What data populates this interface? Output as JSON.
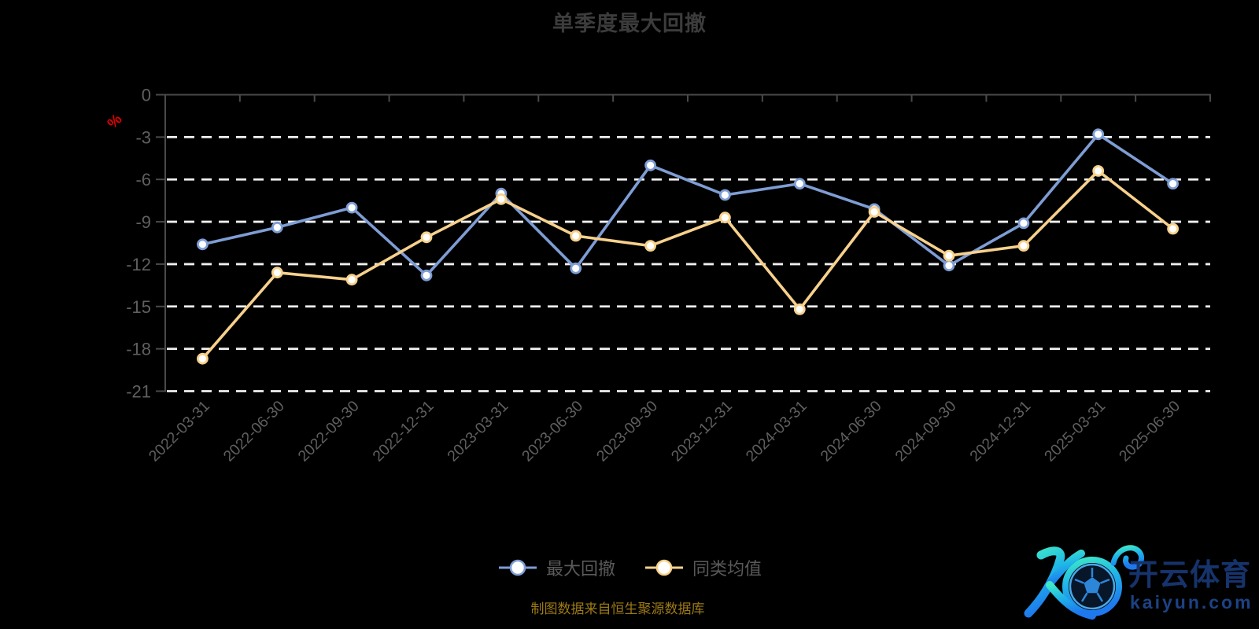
{
  "title": {
    "text": "单季度最大回撤"
  },
  "source_note": "制图数据来自恒生聚源数据库",
  "watermark": {
    "cn": "开云体育",
    "url": "kaiyun.com"
  },
  "colors": {
    "series_blue": "#7e9dd4",
    "series_yellow": "#f7d18c",
    "unit_red": "#e00000",
    "source_gold": "#9c7a16",
    "grid_white": "#efefef",
    "axis_gray": "#4a4a4a",
    "tick_label_gray": "#5f5f5f",
    "watermark_navy": "#16336b",
    "watermark_url_blue": "#1d4284"
  },
  "chart_data": {
    "type": "line",
    "title": "单季度最大回撤",
    "unit_label": "%",
    "xlabel": "",
    "ylabel": "%",
    "ylim": [
      -21,
      0
    ],
    "yticks": [
      0,
      -3,
      -6,
      -9,
      -12,
      -15,
      -18,
      -21
    ],
    "grid": "dashed-horizontal",
    "legend_position": "bottom",
    "categories": [
      "2022-03-31",
      "2022-06-30",
      "2022-09-30",
      "2022-12-31",
      "2023-03-31",
      "2023-06-30",
      "2023-09-30",
      "2023-12-31",
      "2024-03-31",
      "2024-06-30",
      "2024-09-30",
      "2024-12-31",
      "2025-03-31",
      "2025-06-30"
    ],
    "series": [
      {
        "name": "最大回撤",
        "color": "#7e9dd4",
        "values": [
          -10.6,
          -9.4,
          -8.0,
          -12.8,
          -7.0,
          -12.3,
          -5.0,
          -7.1,
          -6.3,
          -8.1,
          -12.1,
          -9.1,
          -2.8,
          -6.3
        ]
      },
      {
        "name": "同类均值",
        "color": "#f7d18c",
        "values": [
          -18.7,
          -12.6,
          -13.1,
          -10.1,
          -7.4,
          -10.0,
          -10.7,
          -8.7,
          -15.2,
          -8.3,
          -11.4,
          -10.7,
          -5.4,
          -9.5
        ]
      }
    ]
  }
}
